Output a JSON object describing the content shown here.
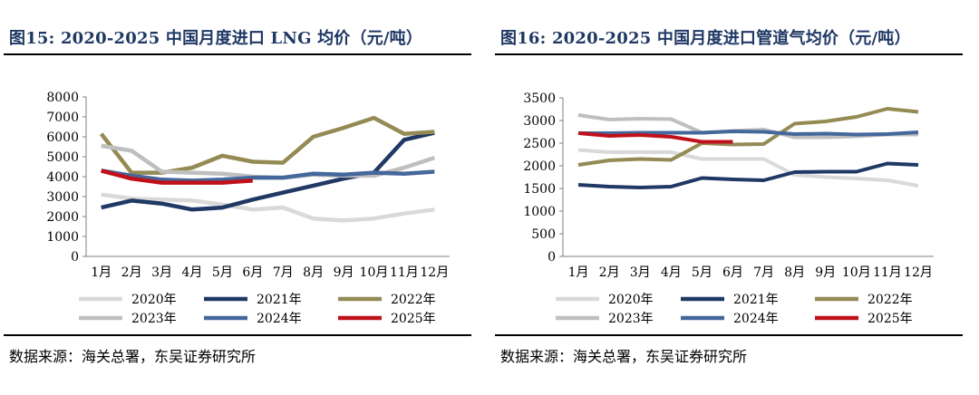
{
  "panels": [
    {
      "title": "图15:  2020-2025 中国月度进口 LNG 均价（元/吨）",
      "source": "数据来源：海关总署，东吴证券研究所"
    },
    {
      "title": "图16:  2020-2025 中国月度进口管道气均价（元/吨）",
      "source": "数据来源：海关总署，东吴证券研究所"
    }
  ],
  "chart_data": [
    {
      "type": "line",
      "title": "2020-2025 中国月度进口 LNG 均价（元/吨）",
      "categories": [
        "1月",
        "2月",
        "3月",
        "4月",
        "5月",
        "6月",
        "7月",
        "8月",
        "9月",
        "10月",
        "11月",
        "12月"
      ],
      "ylim": [
        0,
        8000
      ],
      "yticks": [
        0,
        1000,
        2000,
        3000,
        4000,
        5000,
        6000,
        7000,
        8000
      ],
      "grid": false,
      "legend_position": "bottom",
      "series": [
        {
          "name": "2020年",
          "color": "#d9d9d9",
          "values": [
            3100,
            2900,
            2850,
            2800,
            2600,
            2350,
            2450,
            1900,
            1800,
            1900,
            2150,
            2350
          ]
        },
        {
          "name": "2021年",
          "color": "#203864",
          "values": [
            2450,
            2800,
            2650,
            2350,
            2450,
            2850,
            3200,
            3550,
            3900,
            4200,
            5850,
            6200
          ]
        },
        {
          "name": "2022年",
          "color": "#948a54",
          "values": [
            6150,
            4200,
            4200,
            4450,
            5050,
            4750,
            4700,
            6000,
            6450,
            6950,
            6150,
            6250
          ]
        },
        {
          "name": "2023年",
          "color": "#bfbfbf",
          "values": [
            5550,
            5300,
            4250,
            4200,
            4150,
            4000,
            3950,
            4100,
            4050,
            4050,
            4450,
            4950
          ]
        },
        {
          "name": "2024年",
          "color": "#44689b",
          "values": [
            4300,
            4050,
            3850,
            3800,
            3850,
            3950,
            3950,
            4150,
            4100,
            4200,
            4150,
            4250
          ]
        },
        {
          "name": "2025年",
          "color": "#c0111b",
          "values": [
            4300,
            3900,
            3700,
            3700,
            3700,
            3800,
            null,
            null,
            null,
            null,
            null,
            null
          ]
        }
      ]
    },
    {
      "type": "line",
      "title": "2020-2025 中国月度进口管道气均价（元/吨）",
      "categories": [
        "1月",
        "2月",
        "3月",
        "4月",
        "5月",
        "6月",
        "7月",
        "8月",
        "9月",
        "10月",
        "11月",
        "12月"
      ],
      "ylim": [
        0,
        3500
      ],
      "yticks": [
        0,
        500,
        1000,
        1500,
        2000,
        2500,
        3000,
        3500
      ],
      "grid": false,
      "legend_position": "bottom",
      "series": [
        {
          "name": "2020年",
          "color": "#d9d9d9",
          "values": [
            2350,
            2300,
            2300,
            2300,
            2150,
            2150,
            2150,
            1800,
            1750,
            1720,
            1680,
            1560
          ]
        },
        {
          "name": "2021年",
          "color": "#203864",
          "values": [
            1580,
            1540,
            1520,
            1540,
            1730,
            1700,
            1680,
            1860,
            1870,
            1870,
            2050,
            2020
          ]
        },
        {
          "name": "2022年",
          "color": "#948a54",
          "values": [
            2020,
            2120,
            2150,
            2130,
            2500,
            2470,
            2480,
            2930,
            2980,
            3080,
            3260,
            3190
          ]
        },
        {
          "name": "2023年",
          "color": "#bfbfbf",
          "values": [
            3120,
            3020,
            3040,
            3030,
            2730,
            2770,
            2800,
            2630,
            2630,
            2650,
            2690,
            2690
          ]
        },
        {
          "name": "2024年",
          "color": "#44689b",
          "values": [
            2720,
            2720,
            2730,
            2730,
            2730,
            2760,
            2750,
            2700,
            2710,
            2690,
            2700,
            2740
          ]
        },
        {
          "name": "2025年",
          "color": "#c0111b",
          "values": [
            2720,
            2660,
            2680,
            2640,
            2530,
            2530,
            null,
            null,
            null,
            null,
            null,
            null
          ]
        }
      ]
    }
  ]
}
